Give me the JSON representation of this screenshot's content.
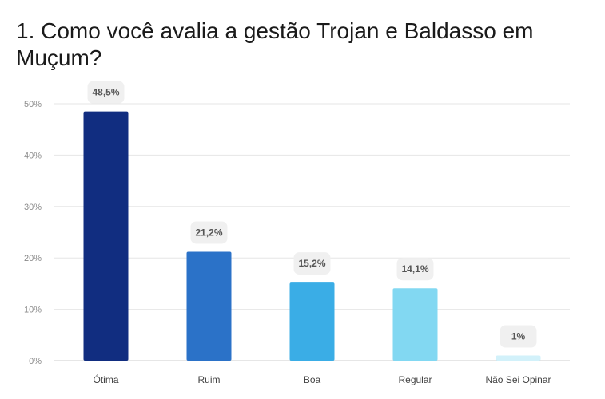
{
  "chart_data": {
    "type": "bar",
    "title": "1. Como você avalia a gestão Trojan e Baldasso em Muçum?",
    "categories": [
      "Ótima",
      "Ruim",
      "Boa",
      "Regular",
      "Não Sei Opinar"
    ],
    "values": [
      48.5,
      21.2,
      15.2,
      14.1,
      1
    ],
    "data_labels": [
      "48,5%",
      "21,2%",
      "15,2%",
      "14,1%",
      "1%"
    ],
    "colors": [
      "#112d80",
      "#2b72c8",
      "#3aade6",
      "#82d8f2",
      "#d2f1fa"
    ],
    "yticks": [
      0,
      10,
      20,
      30,
      40,
      50
    ],
    "ytick_labels": [
      "0%",
      "10%",
      "20%",
      "30%",
      "40%",
      "50%"
    ],
    "ylim": [
      0,
      50
    ],
    "grid": true,
    "legend": "none"
  }
}
